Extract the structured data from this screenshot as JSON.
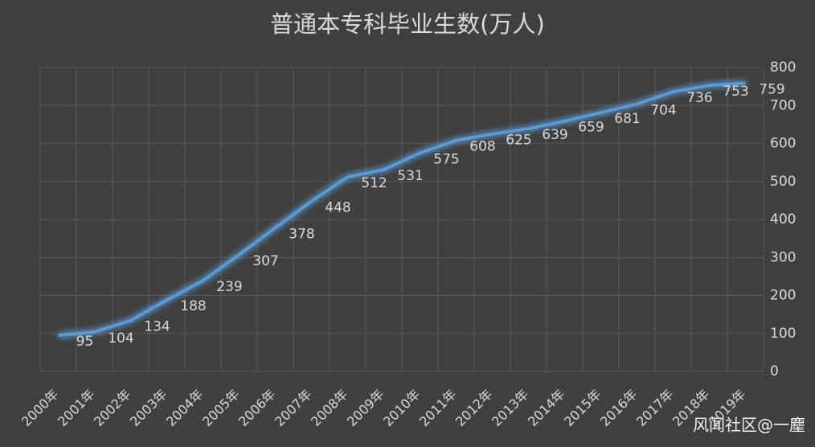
{
  "chart_data": {
    "type": "line",
    "title": "普通本专科毕业生数(万人)",
    "categories": [
      "2000年",
      "2001年",
      "2002年",
      "2003年",
      "2004年",
      "2005年",
      "2006年",
      "2007年",
      "2008年",
      "2009年",
      "2010年",
      "2011年",
      "2012年",
      "2013年",
      "2014年",
      "2015年",
      "2016年",
      "2017年",
      "2018年",
      "2019年"
    ],
    "values": [
      95,
      104,
      134,
      188,
      239,
      307,
      378,
      448,
      512,
      531,
      575,
      608,
      625,
      639,
      659,
      681,
      704,
      736,
      753,
      759
    ],
    "color": "#5b9bd5",
    "ylim": [
      0,
      800
    ],
    "yticks": [
      0,
      100,
      200,
      300,
      400,
      500,
      600,
      700,
      800
    ],
    "grid": true,
    "y_axis_side": "right",
    "watermark": "风闻社区@一麈"
  }
}
